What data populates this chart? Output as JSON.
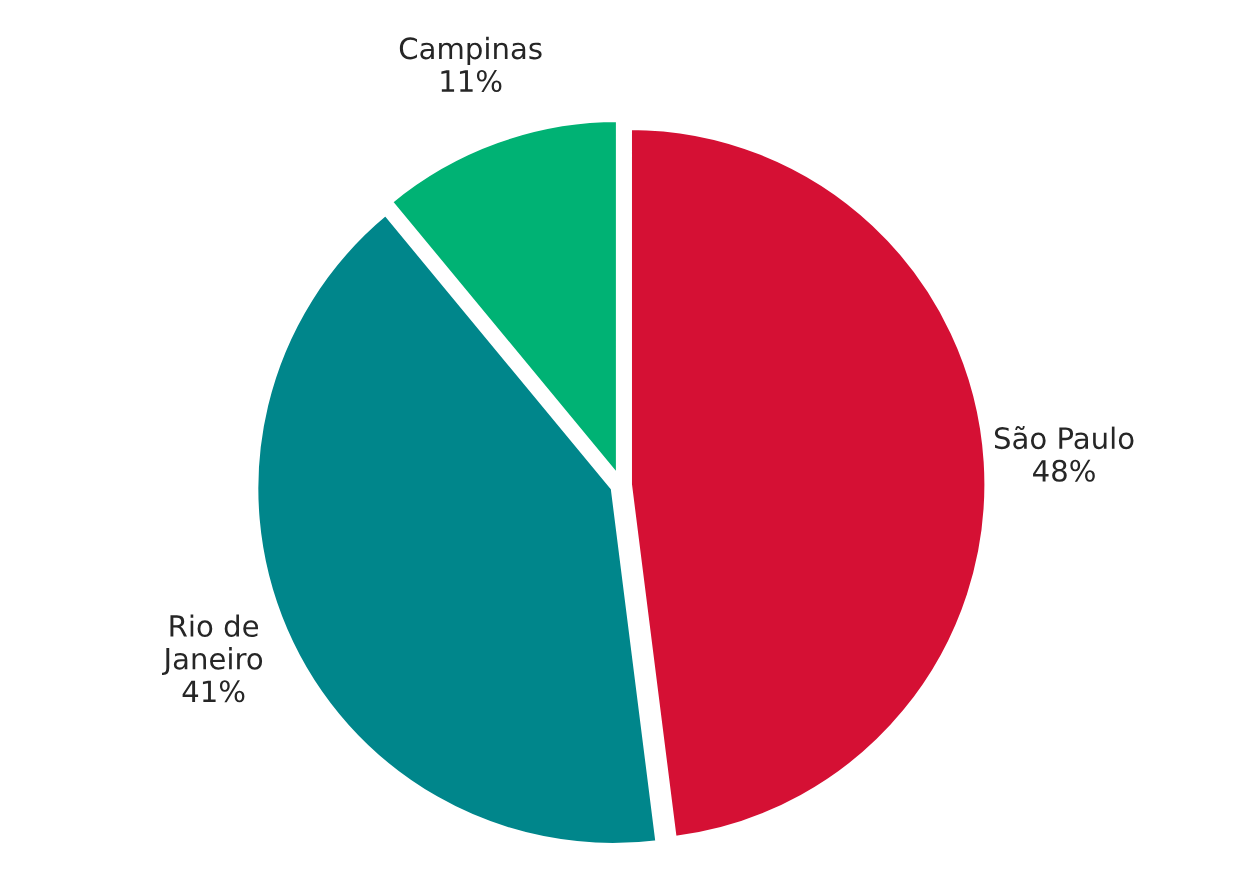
{
  "chart_data": {
    "type": "pie",
    "categories": [
      "São Paulo",
      "Rio de\nJaneiro",
      "Campinas"
    ],
    "values": [
      48,
      41,
      11
    ],
    "value_labels": [
      "48%",
      "41%",
      "11%"
    ],
    "colors": [
      "#d51034",
      "#00868b",
      "#00b274"
    ]
  }
}
